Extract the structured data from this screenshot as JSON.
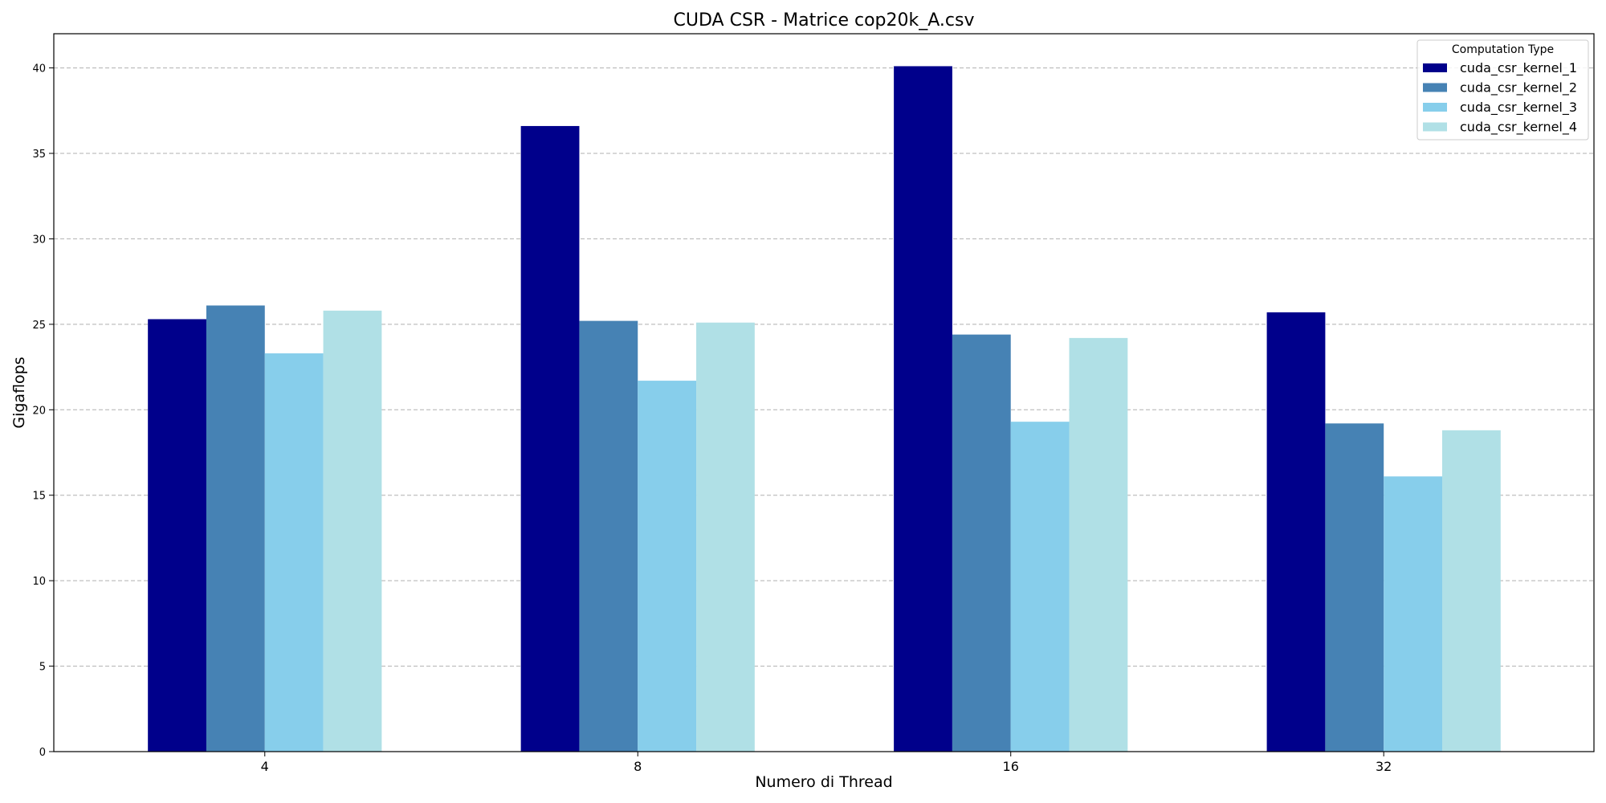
{
  "chart_data": {
    "type": "bar",
    "title": "CUDA CSR - Matrice cop20k_A.csv",
    "xlabel": "Numero di Thread",
    "ylabel": "Gigaflops",
    "categories": [
      "4",
      "8",
      "16",
      "32"
    ],
    "ylim": [
      0,
      42
    ],
    "yticks": [
      0,
      5,
      10,
      15,
      20,
      25,
      30,
      35,
      40
    ],
    "grid": "y-dashed",
    "legend": {
      "title": "Computation Type",
      "placement": "top-right"
    },
    "series": [
      {
        "name": "cuda_csr_kernel_1",
        "color": "#00008B",
        "values": [
          25.3,
          36.6,
          40.1,
          25.7
        ]
      },
      {
        "name": "cuda_csr_kernel_2",
        "color": "#4682B4",
        "values": [
          26.1,
          25.2,
          24.4,
          19.2
        ]
      },
      {
        "name": "cuda_csr_kernel_3",
        "color": "#87CEEB",
        "values": [
          23.3,
          21.7,
          19.3,
          16.1
        ]
      },
      {
        "name": "cuda_csr_kernel_4",
        "color": "#B0E0E6",
        "values": [
          25.8,
          25.1,
          24.2,
          18.8
        ]
      }
    ]
  }
}
